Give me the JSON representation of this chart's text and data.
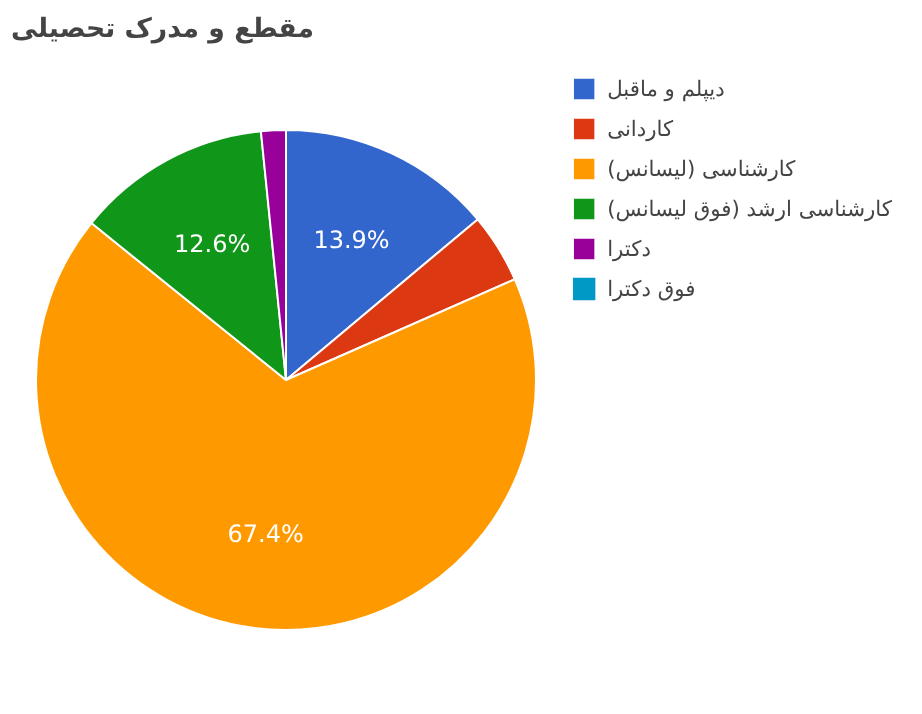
{
  "chart_data": {
    "type": "pie",
    "title": "مقطع و مدرک تحصیلی",
    "categories": [
      "دیپلم و ماقبل",
      "کاردانی",
      "کارشناسی (لیسانس)",
      "کارشناسی ارشد (فوق لیسانس)",
      "دکترا",
      "فوق دکترا"
    ],
    "values": [
      13.9,
      4.5,
      67.4,
      12.6,
      1.6,
      0
    ],
    "colors": [
      "#3366cc",
      "#dc3912",
      "#ff9900",
      "#109618",
      "#990099",
      "#0099c6"
    ],
    "value_labels": [
      "13.9%",
      null,
      "67.4%",
      "12.6%",
      null,
      null
    ],
    "legend": "right"
  }
}
